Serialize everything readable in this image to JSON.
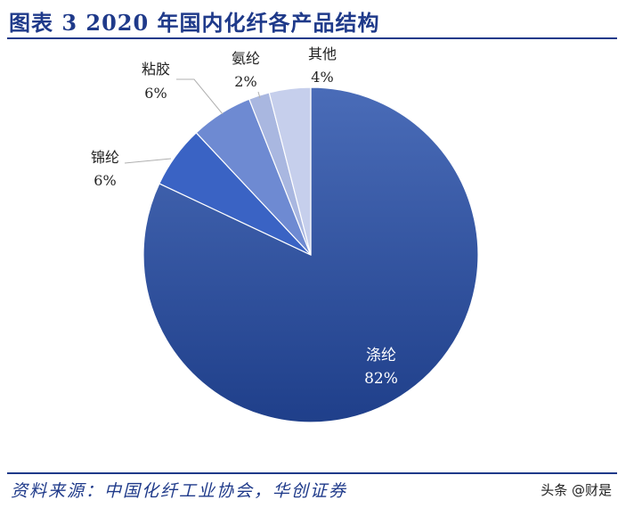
{
  "header": {
    "title": "图表 3  2020 年国内化纤各产品结构"
  },
  "footer": {
    "source": "资料来源：中国化纤工业协会，华创证券",
    "watermark": "头条 @财是"
  },
  "chart_data": {
    "type": "pie",
    "title": "",
    "start_angle_deg": 0,
    "direction": "clockwise",
    "slices": [
      {
        "name": "涤纶",
        "value": 82,
        "label": "82%",
        "color": "#2e4f99"
      },
      {
        "name": "锦纶",
        "value": 6,
        "label": "6%",
        "color": "#3a63c4"
      },
      {
        "name": "粘胶",
        "value": 6,
        "label": "6%",
        "color": "#6e8ad2"
      },
      {
        "name": "氨纶",
        "value": 2,
        "label": "2%",
        "color": "#a9b7e0"
      },
      {
        "name": "其他",
        "value": 4,
        "label": "4%",
        "color": "#c6cfec"
      }
    ]
  }
}
